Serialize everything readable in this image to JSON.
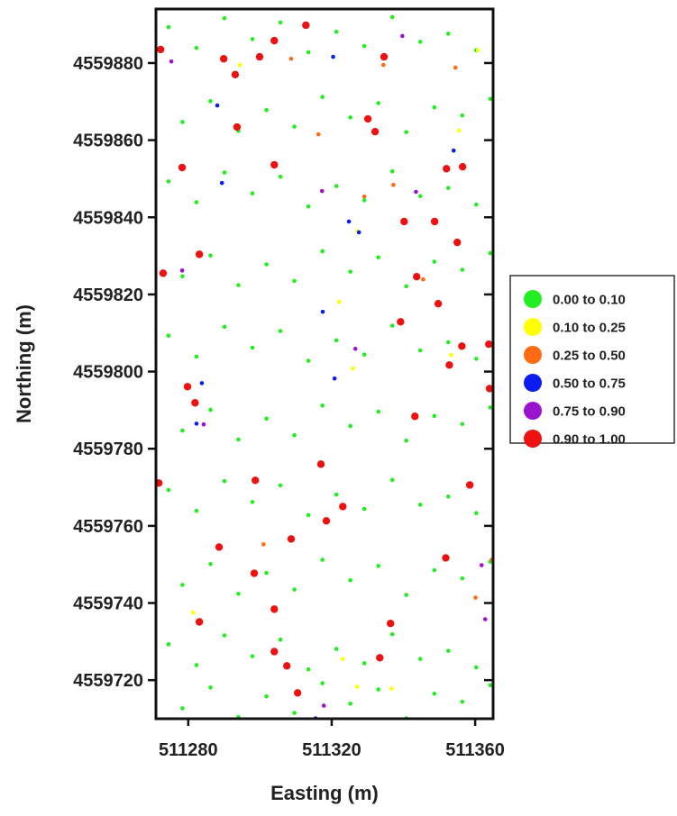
{
  "chart_data": {
    "type": "scatter",
    "x_label": "Easting (m)",
    "y_label": "Northing (m)",
    "xlim": [
      511271,
      511365
    ],
    "ylim": [
      4559710,
      4559894
    ],
    "xticks": [
      511280,
      511320,
      511360
    ],
    "yticks": [
      4559720,
      4559740,
      4559760,
      4559780,
      4559800,
      4559820,
      4559840,
      4559860,
      4559880
    ],
    "legend": "right",
    "series": [
      {
        "name": "0.00 to 0.10",
        "color": "#22ee22",
        "x": [
          511274.5,
          511282.3,
          511290.1,
          511297.9,
          511305.7,
          511313.5,
          511321.3,
          511329.1,
          511336.9,
          511344.7,
          511352.5,
          511360.3,
          511278.4,
          511286.2,
          511294.0,
          511301.8,
          511309.6,
          511317.4,
          511325.2,
          511333.0,
          511340.8,
          511348.6,
          511356.4,
          511364.2,
          511274.5,
          511282.3,
          511290.1,
          511297.9,
          511305.7,
          511313.5,
          511321.3,
          511329.1,
          511336.9,
          511344.7,
          511352.5,
          511360.3,
          511278.4,
          511286.2,
          511294.0,
          511301.8,
          511309.6,
          511317.4,
          511325.2,
          511333.0,
          511340.8,
          511348.6,
          511356.4,
          511364.2,
          511274.5,
          511282.3,
          511290.1,
          511297.9,
          511305.7,
          511313.5,
          511321.3,
          511329.1,
          511336.9,
          511344.7,
          511352.5,
          511360.3,
          511278.4,
          511286.2,
          511294.0,
          511301.8,
          511309.6,
          511317.4,
          511325.2,
          511333.0,
          511340.8,
          511348.6,
          511356.4,
          511364.2,
          511274.5,
          511282.3,
          511290.1,
          511297.9,
          511305.7,
          511313.5,
          511321.3,
          511329.1,
          511336.9,
          511344.7,
          511352.5,
          511360.3,
          511278.4,
          511286.2,
          511294.0,
          511301.8,
          511309.6,
          511317.4,
          511325.2,
          511333.0,
          511340.8,
          511348.6,
          511356.4,
          511364.2,
          511274.5,
          511282.3,
          511290.1,
          511297.9,
          511305.7,
          511313.5,
          511321.3,
          511329.1,
          511336.9,
          511344.7,
          511352.5,
          511360.3,
          511278.4,
          511286.2,
          511294.0,
          511301.8,
          511309.6,
          511317.4,
          511325.2,
          511333.0,
          511340.8,
          511348.6,
          511356.4,
          511364.2
        ],
        "values": [
          4559889.3,
          4559883.9,
          4559891.6,
          4559886.2,
          4559890.5,
          4559882.8,
          4559888.1,
          4559884.4,
          4559891.9,
          4559885.5,
          4559887.6,
          4559883.3,
          4559864.7,
          4559870.1,
          4559862.4,
          4559867.8,
          4559863.5,
          4559871.2,
          4559865.9,
          4559869.6,
          4559862.1,
          4559868.5,
          4559866.4,
          4559870.7,
          4559849.3,
          4559843.9,
          4559851.6,
          4559846.2,
          4559850.5,
          4559842.8,
          4559848.1,
          4559844.4,
          4559851.9,
          4559845.5,
          4559847.6,
          4559843.3,
          4559824.7,
          4559830.1,
          4559822.4,
          4559827.8,
          4559823.5,
          4559831.2,
          4559825.9,
          4559829.6,
          4559822.1,
          4559828.5,
          4559826.4,
          4559830.7,
          4559809.3,
          4559803.9,
          4559811.6,
          4559806.2,
          4559810.5,
          4559802.8,
          4559808.1,
          4559804.4,
          4559811.9,
          4559805.5,
          4559807.6,
          4559803.3,
          4559784.7,
          4559790.1,
          4559782.4,
          4559787.8,
          4559783.5,
          4559791.2,
          4559785.9,
          4559789.6,
          4559782.1,
          4559788.5,
          4559786.4,
          4559790.7,
          4559769.3,
          4559763.9,
          4559771.6,
          4559766.2,
          4559770.5,
          4559762.8,
          4559768.1,
          4559764.4,
          4559771.9,
          4559765.5,
          4559767.6,
          4559763.3,
          4559744.7,
          4559750.1,
          4559742.4,
          4559747.8,
          4559743.5,
          4559751.2,
          4559745.9,
          4559749.6,
          4559742.1,
          4559748.5,
          4559746.4,
          4559750.7,
          4559729.3,
          4559723.9,
          4559731.6,
          4559726.2,
          4559730.5,
          4559722.8,
          4559728.1,
          4559724.4,
          4559731.9,
          4559725.5,
          4559727.6,
          4559723.3,
          4559712.7,
          4559718.1,
          4559710.4,
          4559715.8,
          4559711.5,
          4559719.2,
          4559713.9,
          4559717.6,
          4559710.1,
          4559716.5,
          4559714.4,
          4559718.7
        ]
      },
      {
        "name": "0.10 to 0.25",
        "color": "#ffff00",
        "x": [
          511294.4,
          511355.5,
          511327.1,
          511322.1,
          511325.9,
          511353.3,
          511281.3,
          511323.1,
          511327.1,
          511336.7,
          511360.8
        ],
        "values": [
          4559879.5,
          4559862.5,
          4559836.3,
          4559818.1,
          4559800.8,
          4559804.3,
          4559737.5,
          4559725.5,
          4559718.3,
          4559717.8,
          4559883.3
        ]
      },
      {
        "name": "0.25 to 0.50",
        "color": "#ff6a13",
        "x": [
          511334.4,
          511308.7,
          511316.3,
          511337.2,
          511329.1,
          511354.5,
          511345.5,
          511360.1,
          511301.0,
          511364.6
        ],
        "values": [
          4559879.5,
          4559881.1,
          4559861.5,
          4559848.4,
          4559845.4,
          4559878.8,
          4559823.9,
          4559741.4,
          4559755.2,
          4559751.2
        ]
      },
      {
        "name": "0.50 to 0.75",
        "color": "#0a1cf0",
        "x": [
          511320.4,
          511288.1,
          511289.4,
          511324.8,
          511327.6,
          511317.5,
          511320.8,
          511283.8,
          511282.3,
          511354.0,
          511315.5
        ],
        "values": [
          4559881.6,
          4559869.0,
          4559848.9,
          4559838.9,
          4559836.1,
          4559815.5,
          4559798.2,
          4559797.0,
          4559786.5,
          4559857.3,
          4559710.1
        ]
      },
      {
        "name": "0.75 to 0.90",
        "color": "#9a14d0",
        "x": [
          511275.3,
          511339.7,
          511278.3,
          511317.3,
          511343.5,
          511326.6,
          511284.3,
          511362.8,
          511361.8,
          511317.8
        ],
        "values": [
          4559880.4,
          4559887.0,
          4559826.2,
          4559846.8,
          4559846.6,
          4559805.9,
          4559786.3,
          4559735.8,
          4559749.8,
          4559713.4
        ]
      },
      {
        "name": "0.90 to 1.00",
        "color": "#ee1111",
        "x": [
          511272.3,
          511289.9,
          511293.1,
          511299.9,
          511304.0,
          511312.8,
          511334.6,
          511293.6,
          511330.1,
          511332.1,
          511278.3,
          511304.0,
          511352.0,
          511356.5,
          511340.2,
          511348.7,
          511355.0,
          511283.1,
          511273.0,
          511343.7,
          511349.7,
          511339.2,
          511356.3,
          511363.8,
          511352.8,
          511364.0,
          511279.8,
          511281.9,
          511343.2,
          511358.5,
          511271.8,
          511317.0,
          511298.7,
          511323.1,
          511318.5,
          511308.7,
          511288.6,
          511351.8,
          511298.4,
          511283.1,
          511336.4,
          511304.0,
          511304.0,
          511307.5,
          511333.4,
          511310.5
        ],
        "values": [
          4559883.5,
          4559881.1,
          4559877.0,
          4559881.6,
          4559885.8,
          4559889.8,
          4559881.6,
          4559863.4,
          4559865.5,
          4559862.2,
          4559852.9,
          4559853.6,
          4559852.6,
          4559853.1,
          4559838.9,
          4559838.9,
          4559833.5,
          4559830.4,
          4559825.5,
          4559824.6,
          4559817.6,
          4559812.9,
          4559806.6,
          4559807.1,
          4559801.7,
          4559795.6,
          4559796.1,
          4559791.9,
          4559788.4,
          4559770.6,
          4559771.1,
          4559776.0,
          4559771.8,
          4559765.0,
          4559761.3,
          4559756.6,
          4559754.5,
          4559751.7,
          4559747.7,
          4559735.1,
          4559734.7,
          4559738.4,
          4559727.4,
          4559723.7,
          4559725.8,
          4559716.7
        ]
      }
    ]
  }
}
